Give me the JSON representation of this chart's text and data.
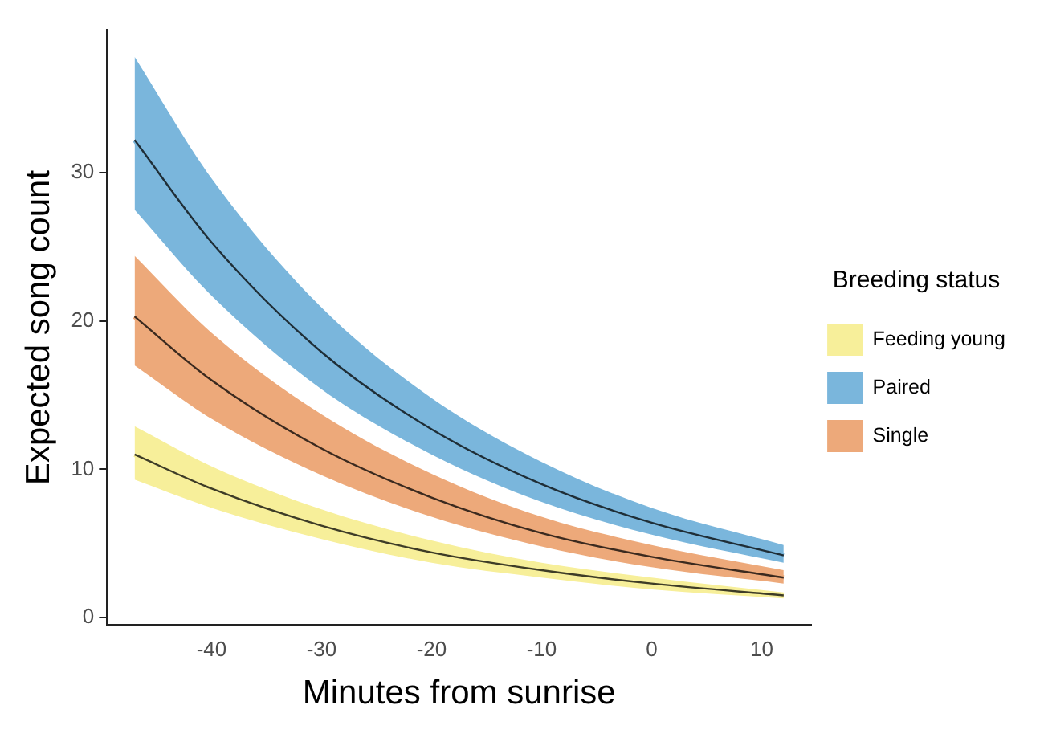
{
  "chart_data": {
    "type": "line",
    "xlabel": "Minutes from sunrise",
    "ylabel": "Expected song count",
    "legend_title": "Breeding status",
    "legend": "right",
    "grid": false,
    "marker": "none",
    "line_style": "solid",
    "x": [
      -47,
      -40,
      -30,
      -20,
      -10,
      0,
      12
    ],
    "xlim": [
      -49.5,
      14.5
    ],
    "xticks": [
      -40,
      -30,
      -20,
      -10,
      0,
      10
    ],
    "ylim": [
      -0.5,
      39.6
    ],
    "yticks": [
      0,
      10,
      20,
      30
    ],
    "series": [
      {
        "name": "Feeding young",
        "color": "#f7ef9a",
        "values": [
          11.0,
          8.7,
          6.2,
          4.4,
          3.2,
          2.3,
          1.5
        ],
        "lower": [
          9.3,
          7.4,
          5.3,
          3.7,
          2.7,
          1.9,
          1.3
        ],
        "upper": [
          12.9,
          10.2,
          7.3,
          5.2,
          3.7,
          2.7,
          1.7
        ]
      },
      {
        "name": "Paired",
        "color": "#7ab6dc",
        "values": [
          32.2,
          25.3,
          17.9,
          12.7,
          9.0,
          6.4,
          4.2
        ],
        "lower": [
          27.5,
          21.7,
          15.4,
          11.0,
          7.8,
          5.6,
          3.7
        ],
        "upper": [
          37.8,
          29.6,
          20.9,
          14.8,
          10.5,
          7.4,
          4.9
        ]
      },
      {
        "name": "Single",
        "color": "#eda97a",
        "values": [
          20.3,
          16.0,
          11.4,
          8.1,
          5.7,
          4.1,
          2.7
        ],
        "lower": [
          17.0,
          13.4,
          9.6,
          6.8,
          4.8,
          3.4,
          2.3
        ],
        "upper": [
          24.4,
          19.2,
          13.7,
          9.7,
          6.8,
          4.9,
          3.2
        ]
      }
    ]
  }
}
